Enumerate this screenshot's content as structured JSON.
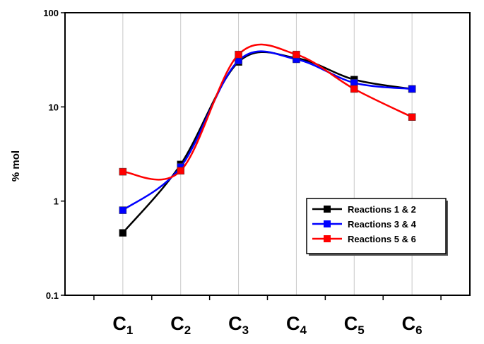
{
  "chart_data": {
    "type": "line",
    "title": "",
    "xlabel": "",
    "ylabel": "% mol",
    "yscale": "log",
    "ylim": [
      0.1,
      100
    ],
    "yticks": [
      {
        "value": 0.1,
        "label": "0.1"
      },
      {
        "value": 1,
        "label": "1"
      },
      {
        "value": 10,
        "label": "10"
      },
      {
        "value": 100,
        "label": "100"
      }
    ],
    "categories": [
      {
        "base": "C",
        "sub": "1"
      },
      {
        "base": "C",
        "sub": "2"
      },
      {
        "base": "C",
        "sub": "3"
      },
      {
        "base": "C",
        "sub": "4"
      },
      {
        "base": "C",
        "sub": "5"
      },
      {
        "base": "C",
        "sub": "6"
      }
    ],
    "grid": {
      "vertical": true,
      "horizontal": false
    },
    "legend_position": "right",
    "smooth": true,
    "series": [
      {
        "name": "Reactions 1 & 2",
        "color": "#000000",
        "values": [
          0.46,
          2.45,
          30.0,
          33.0,
          19.5,
          15.5
        ]
      },
      {
        "name": "Reactions 3 & 4",
        "color": "#0000ff",
        "values": [
          0.8,
          2.3,
          31.0,
          32.0,
          18.0,
          15.5
        ]
      },
      {
        "name": "Reactions 5 & 6",
        "color": "#ff0000",
        "values": [
          2.05,
          2.1,
          36.0,
          36.0,
          15.5,
          7.8
        ]
      }
    ]
  }
}
